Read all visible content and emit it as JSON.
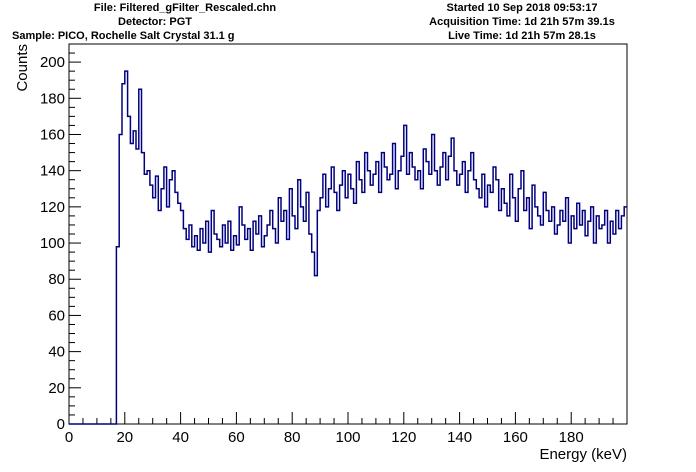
{
  "header": {
    "file": "File: Filtered_gFilter_Rescaled.chn",
    "detector": "Detector: PGT",
    "sample": "Sample: PICO, Rochelle Salt Crystal 31.1 g",
    "started": "Started 10 Sep 2018 09:53:17",
    "acq_time": "Acquisition Time: 1d 21h 57m 39.1s",
    "live_time": "Live Time: 1d 21h 57m 28.1s"
  },
  "chart_data": {
    "type": "line",
    "style": "histogram-step",
    "series_color": "#000080",
    "xlabel": "Energy (keV)",
    "ylabel": "Counts",
    "xlim": [
      0,
      200
    ],
    "ylim": [
      0,
      210
    ],
    "x_ticks": [
      "0",
      "20",
      "40",
      "60",
      "80",
      "100",
      "120",
      "140",
      "160",
      "180"
    ],
    "y_ticks": [
      "0",
      "20",
      "40",
      "60",
      "80",
      "100",
      "120",
      "140",
      "160",
      "180",
      "200"
    ],
    "grid": false,
    "series": [
      {
        "x": [
          0,
          1,
          2,
          3,
          4,
          5,
          6,
          7,
          8,
          9,
          10,
          11,
          12,
          13,
          14,
          15,
          16,
          17,
          18,
          19,
          20,
          21,
          22,
          23,
          24,
          25,
          26,
          27,
          28,
          29,
          30,
          31,
          32,
          33,
          34,
          35,
          36,
          37,
          38,
          39,
          40,
          41,
          42,
          43,
          44,
          45,
          46,
          47,
          48,
          49,
          50,
          51,
          52,
          53,
          54,
          55,
          56,
          57,
          58,
          59,
          60,
          61,
          62,
          63,
          64,
          65,
          66,
          67,
          68,
          69,
          70,
          71,
          72,
          73,
          74,
          75,
          76,
          77,
          78,
          79,
          80,
          81,
          82,
          83,
          84,
          85,
          86,
          87,
          88,
          89,
          90,
          91,
          92,
          93,
          94,
          95,
          96,
          97,
          98,
          99,
          100,
          101,
          102,
          103,
          104,
          105,
          106,
          107,
          108,
          109,
          110,
          111,
          112,
          113,
          114,
          115,
          116,
          117,
          118,
          119,
          120,
          121,
          122,
          123,
          124,
          125,
          126,
          127,
          128,
          129,
          130,
          131,
          132,
          133,
          134,
          135,
          136,
          137,
          138,
          139,
          140,
          141,
          142,
          143,
          144,
          145,
          146,
          147,
          148,
          149,
          150,
          151,
          152,
          153,
          154,
          155,
          156,
          157,
          158,
          159,
          160,
          161,
          162,
          163,
          164,
          165,
          166,
          167,
          168,
          169,
          170,
          171,
          172,
          173,
          174,
          175,
          176,
          177,
          178,
          179,
          180,
          181,
          182,
          183,
          184,
          185,
          186,
          187,
          188,
          189,
          190,
          191,
          192,
          193,
          194,
          195,
          196,
          197,
          198,
          199
        ],
        "y": [
          0,
          0,
          0,
          0,
          0,
          0,
          0,
          0,
          0,
          0,
          0,
          0,
          0,
          0,
          0,
          0,
          0,
          98,
          160,
          188,
          195,
          170,
          155,
          162,
          152,
          185,
          150,
          138,
          140,
          132,
          125,
          137,
          118,
          130,
          142,
          120,
          135,
          140,
          128,
          122,
          118,
          108,
          102,
          110,
          98,
          104,
          96,
          108,
          100,
          112,
          95,
          118,
          105,
          102,
          98,
          110,
          100,
          112,
          96,
          104,
          99,
          120,
          110,
          102,
          108,
          96,
          112,
          105,
          115,
          98,
          104,
          110,
          118,
          108,
          100,
          125,
          112,
          118,
          102,
          130,
          115,
          108,
          135,
          120,
          112,
          128,
          105,
          95,
          82,
          118,
          125,
          138,
          120,
          130,
          142,
          128,
          118,
          132,
          140,
          125,
          138,
          130,
          122,
          145,
          135,
          128,
          150,
          140,
          132,
          138,
          145,
          128,
          150,
          142,
          135,
          138,
          155,
          130,
          140,
          148,
          165,
          138,
          150,
          142,
          135,
          140,
          130,
          152,
          145,
          138,
          160,
          140,
          132,
          142,
          150,
          135,
          148,
          158,
          140,
          132,
          138,
          145,
          128,
          140,
          150,
          135,
          130,
          125,
          138,
          120,
          132,
          128,
          142,
          135,
          118,
          130,
          122,
          115,
          138,
          125,
          112,
          130,
          140,
          118,
          125,
          108,
          132,
          120,
          115,
          110,
          128,
          118,
          112,
          120,
          105,
          110,
          118,
          112,
          125,
          100,
          115,
          108,
          122,
          110,
          118,
          104,
          112,
          120,
          100,
          115,
          108,
          110,
          118,
          100,
          112,
          105,
          118,
          108,
          115,
          120
        ]
      }
    ]
  }
}
